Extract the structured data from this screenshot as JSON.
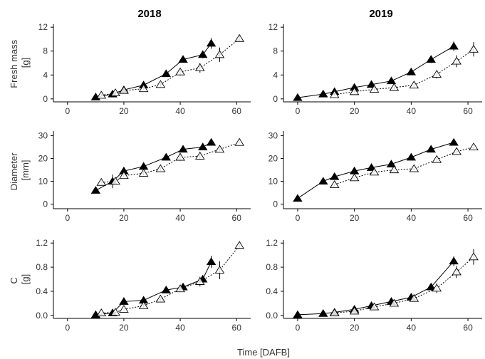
{
  "figure": {
    "x_label": "Time [DAFB]",
    "columns": [
      "2018",
      "2019"
    ],
    "rows": [
      {
        "label_lines": [
          "Fresh mass",
          "[g]"
        ]
      },
      {
        "label_lines": [
          "Diameter",
          "[mm]"
        ]
      },
      {
        "label_lines": [
          "C",
          "[g]"
        ]
      }
    ],
    "colors": {
      "axis": "#000000",
      "tick_text": "#333333",
      "line": "#000000"
    }
  },
  "chart_data": [
    {
      "type": "line",
      "panel": "fresh-mass-2018",
      "title": "2018",
      "xlabel": "",
      "ylabel": "Fresh mass [g]",
      "xlim": [
        -5,
        65
      ],
      "ylim": [
        -0.5,
        12.5
      ],
      "x_ticks": [
        0,
        20,
        40,
        60
      ],
      "y_ticks": [
        0,
        4,
        8,
        12
      ],
      "series": [
        {
          "marker": "filled-triangle",
          "line": "solid",
          "x": [
            10,
            16,
            20,
            27,
            35,
            41,
            48,
            51
          ],
          "y": [
            0.3,
            0.8,
            1.5,
            2.3,
            4.2,
            6.6,
            7.4,
            9.3
          ],
          "err": [
            0.2,
            0.2,
            0.3,
            0.3,
            0.4,
            0.5,
            0.6,
            0.9
          ]
        },
        {
          "marker": "open-triangle",
          "line": "dotted",
          "x": [
            12,
            17,
            20,
            27,
            33,
            40,
            47,
            54,
            61
          ],
          "y": [
            0.6,
            1.0,
            1.4,
            1.7,
            2.4,
            4.5,
            5.2,
            7.4,
            10.1
          ],
          "err": [
            0.2,
            0.2,
            0.3,
            0.3,
            0.4,
            0.6,
            0.8,
            1.2,
            0.5
          ]
        }
      ]
    },
    {
      "type": "line",
      "panel": "fresh-mass-2019",
      "title": "2019",
      "xlabel": "",
      "ylabel": "",
      "xlim": [
        -5,
        65
      ],
      "ylim": [
        -0.5,
        12.5
      ],
      "x_ticks": [
        0,
        20,
        40,
        60
      ],
      "y_ticks": [
        0,
        4,
        8,
        12
      ],
      "series": [
        {
          "marker": "filled-triangle",
          "line": "solid",
          "x": [
            0,
            9,
            13,
            20,
            26,
            33,
            40,
            47,
            55
          ],
          "y": [
            0.2,
            0.8,
            1.2,
            1.9,
            2.4,
            3.0,
            4.5,
            6.6,
            8.8
          ],
          "err": [
            0.1,
            0.2,
            0.2,
            0.3,
            0.3,
            0.3,
            0.4,
            0.6,
            0.8
          ]
        },
        {
          "marker": "open-triangle",
          "line": "dotted",
          "x": [
            13,
            20,
            27,
            34,
            41,
            49,
            56,
            62
          ],
          "y": [
            0.7,
            1.2,
            1.6,
            1.9,
            2.3,
            4.1,
            6.3,
            8.3
          ],
          "err": [
            0.2,
            0.3,
            0.3,
            0.3,
            0.4,
            0.7,
            1.0,
            1.2
          ]
        }
      ]
    },
    {
      "type": "line",
      "panel": "diameter-2018",
      "title": "",
      "xlabel": "",
      "ylabel": "Diameter [mm]",
      "xlim": [
        -5,
        65
      ],
      "ylim": [
        -2,
        32
      ],
      "x_ticks": [
        0,
        20,
        40,
        60
      ],
      "y_ticks": [
        0,
        10,
        20,
        30
      ],
      "series": [
        {
          "marker": "filled-triangle",
          "line": "solid",
          "x": [
            10,
            16,
            20,
            27,
            35,
            41,
            48,
            51
          ],
          "y": [
            6,
            10,
            14.5,
            16.5,
            20.5,
            24,
            25,
            27
          ],
          "err": [
            0.5,
            3.0,
            1.0,
            1.0,
            1.0,
            1.0,
            1.0,
            1.0
          ]
        },
        {
          "marker": "open-triangle",
          "line": "dotted",
          "x": [
            12,
            17,
            20,
            27,
            33,
            40,
            47,
            54,
            61
          ],
          "y": [
            9.5,
            10,
            12.5,
            13.5,
            15.5,
            20.5,
            21,
            24,
            27
          ],
          "err": [
            0.5,
            1.0,
            1.0,
            1.0,
            1.0,
            1.5,
            1.5,
            1.0,
            0.5
          ]
        }
      ]
    },
    {
      "type": "line",
      "panel": "diameter-2019",
      "title": "",
      "xlabel": "",
      "ylabel": "",
      "xlim": [
        -5,
        65
      ],
      "ylim": [
        -2,
        32
      ],
      "x_ticks": [
        0,
        20,
        40,
        60
      ],
      "y_ticks": [
        0,
        10,
        20,
        30
      ],
      "series": [
        {
          "marker": "filled-triangle",
          "line": "solid",
          "x": [
            0,
            9,
            13,
            20,
            26,
            33,
            40,
            47,
            55
          ],
          "y": [
            2.5,
            10,
            12,
            14.5,
            16,
            17.5,
            20.5,
            24,
            27
          ],
          "err": [
            0.3,
            0.5,
            0.5,
            0.5,
            0.5,
            0.5,
            0.6,
            0.8,
            1.0
          ]
        },
        {
          "marker": "open-triangle",
          "line": "dotted",
          "x": [
            13,
            20,
            27,
            34,
            41,
            49,
            56,
            62
          ],
          "y": [
            8.5,
            11.5,
            14,
            15,
            15.5,
            19.5,
            23,
            25
          ],
          "err": [
            0.5,
            0.6,
            0.8,
            0.8,
            0.8,
            1.0,
            1.2,
            1.0
          ]
        }
      ]
    },
    {
      "type": "line",
      "panel": "c-2018",
      "title": "",
      "xlabel": "",
      "ylabel": "C [g]",
      "xlim": [
        -5,
        65
      ],
      "ylim": [
        -0.05,
        1.25
      ],
      "x_ticks": [
        0,
        20,
        40,
        60
      ],
      "y_ticks": [
        0.0,
        0.4,
        0.8,
        1.2
      ],
      "y_tick_labels": [
        "0.0",
        "0.4",
        "0.8",
        "1.2"
      ],
      "series": [
        {
          "marker": "filled-triangle",
          "line": "solid",
          "x": [
            10,
            16,
            20,
            27,
            35,
            41,
            48,
            51
          ],
          "y": [
            0.01,
            0.04,
            0.23,
            0.25,
            0.42,
            0.47,
            0.6,
            0.89
          ],
          "err": [
            0.01,
            0.01,
            0.02,
            0.02,
            0.03,
            0.04,
            0.06,
            0.1
          ]
        },
        {
          "marker": "open-triangle",
          "line": "dotted",
          "x": [
            12,
            17,
            20,
            27,
            33,
            40,
            47,
            54,
            61
          ],
          "y": [
            0.04,
            0.05,
            0.1,
            0.16,
            0.27,
            0.44,
            0.56,
            0.75,
            1.16
          ],
          "err": [
            0.01,
            0.01,
            0.02,
            0.03,
            0.03,
            0.05,
            0.08,
            0.15,
            0.05
          ]
        }
      ]
    },
    {
      "type": "line",
      "panel": "c-2019",
      "title": "",
      "xlabel": "",
      "ylabel": "",
      "xlim": [
        -5,
        65
      ],
      "ylim": [
        -0.05,
        1.25
      ],
      "x_ticks": [
        0,
        20,
        40,
        60
      ],
      "y_ticks": [
        0.0,
        0.4,
        0.8,
        1.2
      ],
      "y_tick_labels": [
        "0.0",
        "0.4",
        "0.8",
        "1.2"
      ],
      "series": [
        {
          "marker": "filled-triangle",
          "line": "solid",
          "x": [
            0,
            9,
            13,
            20,
            26,
            33,
            40,
            47,
            55
          ],
          "y": [
            0.01,
            0.03,
            0.05,
            0.1,
            0.16,
            0.23,
            0.3,
            0.47,
            0.9
          ],
          "err": [
            0.01,
            0.01,
            0.01,
            0.02,
            0.02,
            0.02,
            0.03,
            0.04,
            0.08
          ]
        },
        {
          "marker": "open-triangle",
          "line": "dotted",
          "x": [
            13,
            20,
            27,
            34,
            41,
            49,
            56,
            62
          ],
          "y": [
            0.04,
            0.07,
            0.14,
            0.2,
            0.28,
            0.45,
            0.72,
            0.97
          ],
          "err": [
            0.01,
            0.02,
            0.02,
            0.03,
            0.04,
            0.08,
            0.1,
            0.13
          ]
        }
      ]
    }
  ]
}
